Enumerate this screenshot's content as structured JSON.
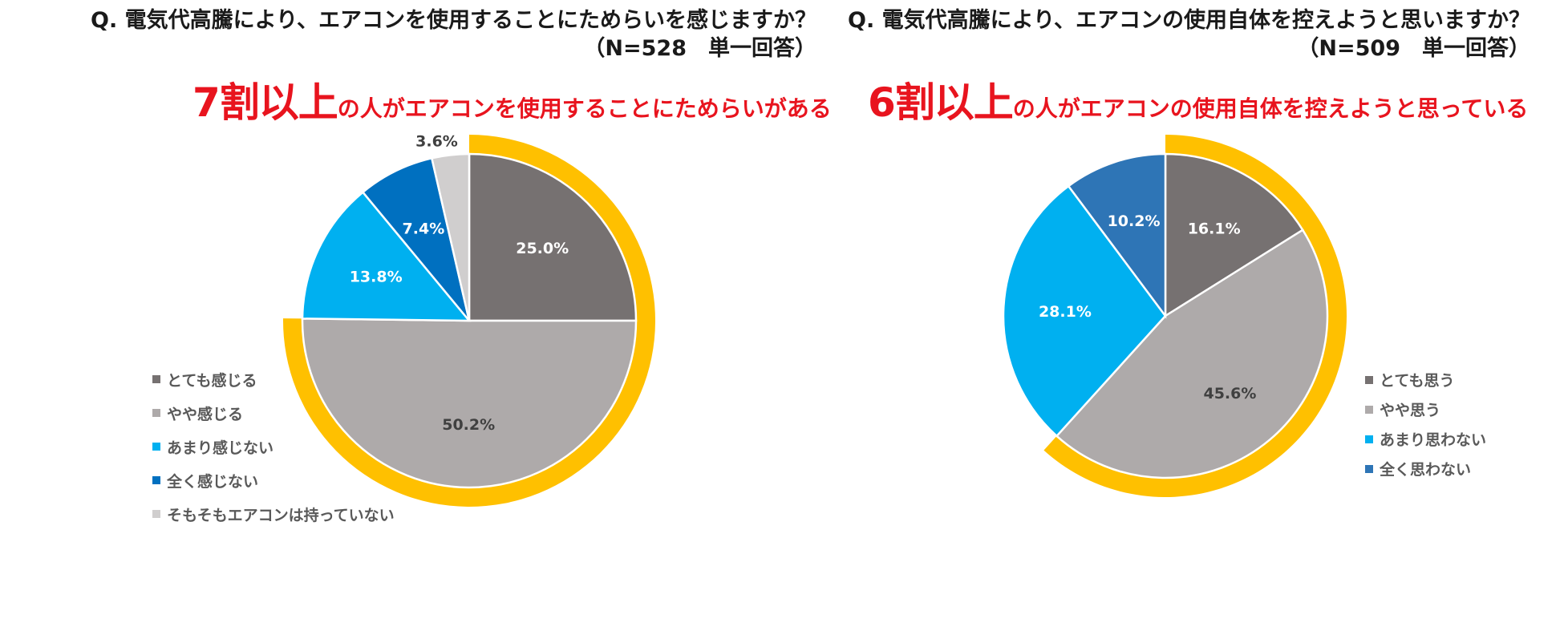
{
  "chart_data": [
    {
      "type": "pie",
      "question": "Q.  電気代高騰により、エアコンを使用することにためらいを感じますか？",
      "sample": "（N=528　単一回答）",
      "headline_big": "7割以上",
      "headline_rest": "の人がエアコンを使用することにためらいがある",
      "slices": [
        {
          "label": "とても感じる",
          "value": 25.0,
          "display": "25.0%",
          "color": "#767171",
          "label_color": "#ffffff"
        },
        {
          "label": "やや感じる",
          "value": 50.2,
          "display": "50.2%",
          "color": "#aeaaaa",
          "label_color": "#404040"
        },
        {
          "label": "あまり感じない",
          "value": 13.8,
          "display": "13.8%",
          "color": "#00b0f0",
          "label_color": "#ffffff"
        },
        {
          "label": "全く感じない",
          "value": 7.4,
          "display": "7.4%",
          "color": "#0070c0",
          "label_color": "#ffffff"
        },
        {
          "label": "そもそもエアコンは持っていない",
          "value": 3.6,
          "display": "3.6%",
          "color": "#d0cece",
          "label_color": "#404040"
        }
      ],
      "highlight_slices": [
        0,
        1
      ],
      "highlight_color": "#ffc000"
    },
    {
      "type": "pie",
      "question": "Q.  電気代高騰により、エアコンの使用自体を控えようと思いますか？",
      "sample": "（N=509　単一回答）",
      "headline_big": "6割以上",
      "headline_rest": "の人がエアコンの使用自体を控えようと思っている",
      "slices": [
        {
          "label": "とても思う",
          "value": 16.1,
          "display": "16.1%",
          "color": "#767171",
          "label_color": "#ffffff"
        },
        {
          "label": "やや思う",
          "value": 45.6,
          "display": "45.6%",
          "color": "#aeaaaa",
          "label_color": "#404040"
        },
        {
          "label": "あまり思わない",
          "value": 28.1,
          "display": "28.1%",
          "color": "#00b0f0",
          "label_color": "#ffffff"
        },
        {
          "label": "全く思わない",
          "value": 10.2,
          "display": "10.2%",
          "color": "#2e75b6",
          "label_color": "#ffffff"
        }
      ],
      "highlight_slices": [
        0,
        1
      ],
      "highlight_color": "#ffc000"
    }
  ]
}
